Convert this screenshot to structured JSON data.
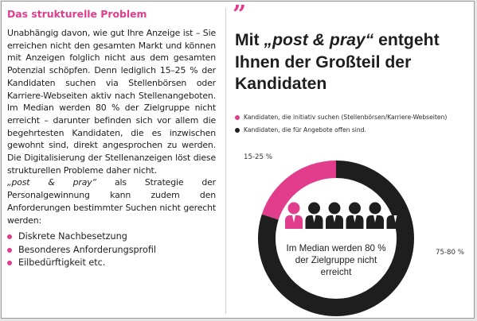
{
  "left": {
    "heading": "Das strukturelle Problem",
    "paragraph1": "Unabhängig davon, wie gut Ihre Anzeige ist – Sie erreichen nicht den gesamten Markt und können mit Anzeigen folglich nicht aus dem gesamten Potenzial schöpfen. Denn lediglich 15–25 % der Kandidaten suchen via Stellenbörsen oder Karriere-Webseiten aktiv nach Stellenangeboten. Im Median werden 80 % der Zielgruppe nicht erreicht – darunter befinden sich vor allem die begehrtesten Kandidaten, die es inzwischen gewohnt sind, direkt angesprochen zu werden. Die Digitalisierung der Stellenanzeigen löst diese strukturellen Probleme daher nicht.",
    "paragraph2_em": "„post & pray“",
    "paragraph2_rest": " als Strategie der Personalgewinnung kann zudem den Anforderungen bestimmter Suchen nicht gerecht werden:",
    "bullets": [
      "Diskrete Nachbesetzung",
      "Besonderes Anforderungsprofil",
      "Eilbedürftigkeit etc."
    ]
  },
  "right": {
    "quote_mark": "”",
    "headline_part1": "Mit ",
    "headline_em": "„post & pray“",
    "headline_part2": " entgeht Ihnen der Großteil der Kandidaten"
  },
  "chart_data": {
    "type": "pie",
    "legend": [
      {
        "label": "Kandidaten, die initiativ suchen (Stellenbörsen/Karriere-Webseiten)",
        "color": "#e23c8c"
      },
      {
        "label": "Kandidaten, die für Angebote offen sind.",
        "color": "#1e1e1e"
      }
    ],
    "slices": [
      {
        "label": "15-25 %",
        "value": 20,
        "color": "#e23c8c"
      },
      {
        "label": "75-80 %",
        "value": 80,
        "color": "#1e1e1e"
      }
    ],
    "center_text": [
      "Im Median werden 80 %",
      "der Zielgruppe nicht",
      "erreicht"
    ],
    "people": {
      "total": 6,
      "highlighted": 1
    }
  },
  "colors": {
    "accent": "#e23c8c",
    "dark": "#1e1e1e"
  }
}
